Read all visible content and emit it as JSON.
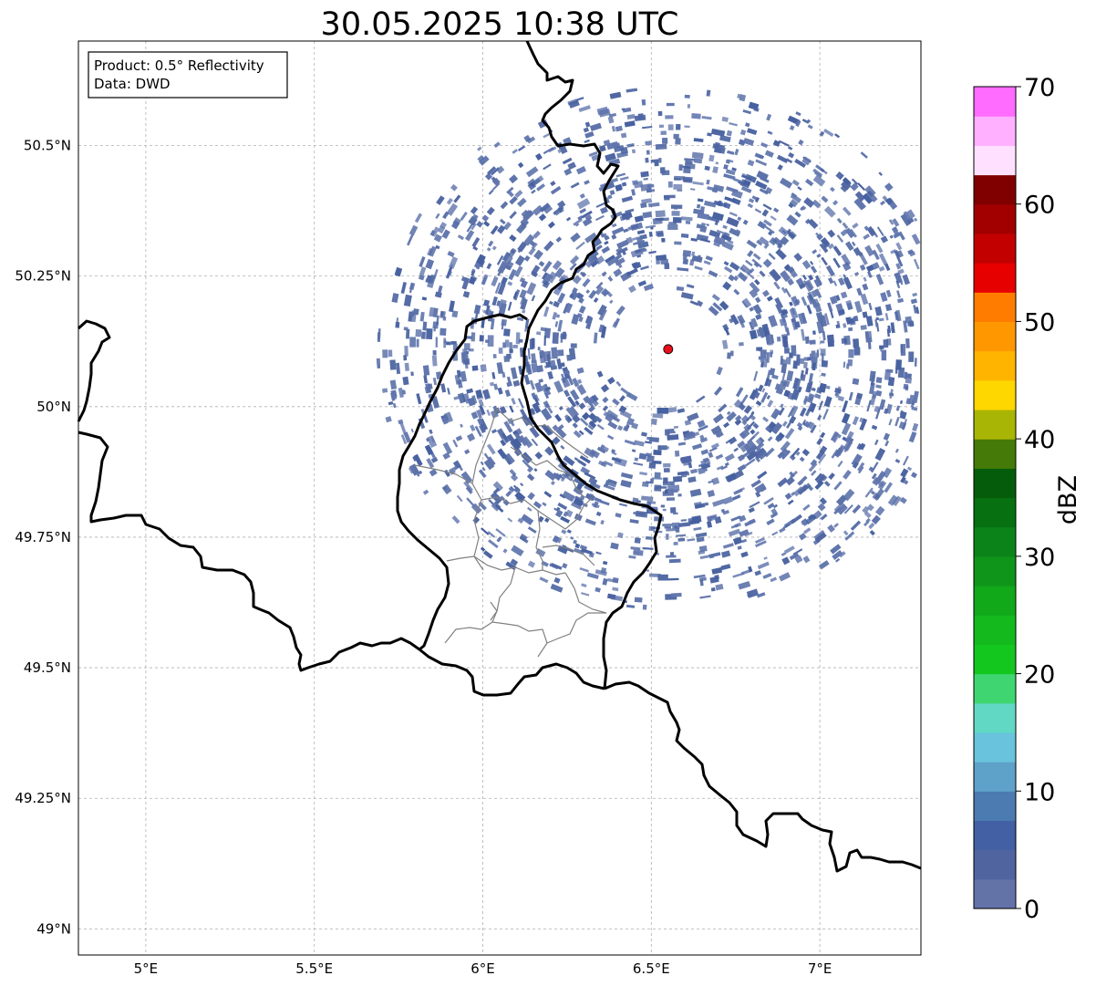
{
  "title": "30.05.2025 10:38 UTC",
  "info_box": {
    "product_line": "Product: 0.5° Reflectivity",
    "data_line": "Data: DWD"
  },
  "map": {
    "lon_range": [
      4.8,
      7.3
    ],
    "lat_range": [
      48.95,
      50.7
    ],
    "x_ticks": [
      "5°E",
      "5.5°E",
      "6°E",
      "6.5°E",
      "7°E"
    ],
    "y_ticks": [
      "49°N",
      "49.25°N",
      "49.5°N",
      "49.75°N",
      "50°N",
      "50.25°N",
      "50.5°N"
    ],
    "radar_site": {
      "lon": 6.55,
      "lat": 50.11,
      "color": "#e8101a"
    },
    "echo_color": "#4f66a3"
  },
  "colorbar": {
    "label": "dBZ",
    "tick_labels": [
      "0",
      "10",
      "20",
      "30",
      "40",
      "50",
      "60",
      "70"
    ],
    "range": [
      0,
      70
    ],
    "step": 2.5,
    "colors": [
      "#6373a8",
      "#50659f",
      "#4260a3",
      "#4b7bb1",
      "#5ea1c9",
      "#6ac3dc",
      "#60d8c4",
      "#3fd672",
      "#14c71f",
      "#14ba1d",
      "#11a81a",
      "#0f961a",
      "#0c8319",
      "#077010",
      "#055d0b",
      "#457a09",
      "#a9b504",
      "#ffd700",
      "#ffb500",
      "#ff9800",
      "#ff7c00",
      "#e60000",
      "#c30000",
      "#a20000",
      "#800000",
      "#ffe1ff",
      "#ffb1ff",
      "#ff6cff",
      "#e834ee"
    ]
  }
}
